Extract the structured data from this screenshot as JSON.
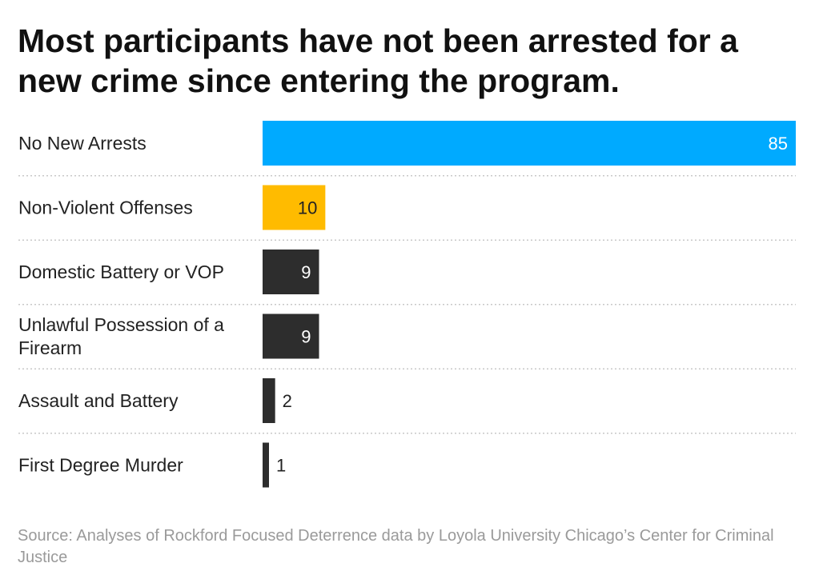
{
  "chart_data": {
    "type": "bar",
    "orientation": "horizontal",
    "title": "Most participants have not been arrested for a new crime since entering the program.",
    "categories": [
      [
        "No New Arrests"
      ],
      [
        "Non-Violent Offenses"
      ],
      [
        "Domestic Battery or VOP"
      ],
      [
        "Unlawful Possession of a",
        "Firearm"
      ],
      [
        "Assault and Battery"
      ],
      [
        "First Degree Murder"
      ]
    ],
    "values": [
      85,
      10,
      9,
      9,
      2,
      1
    ],
    "bar_colors": [
      "#00aaff",
      "#ffbb00",
      "#2d2d2d",
      "#2d2d2d",
      "#2d2d2d",
      "#2d2d2d"
    ],
    "xlim": [
      0,
      85
    ],
    "xlabel": "",
    "ylabel": "",
    "grid": false,
    "source": "Source: Analyses of Rockford Focused Deterrence data by Loyola University Chicago’s Center for Criminal Justice"
  },
  "colors": {
    "divider": "#c8c8c8",
    "label_on_bar": "#ffffff",
    "label_off_bar": "#222222",
    "label_on_yellow": "#222222"
  }
}
